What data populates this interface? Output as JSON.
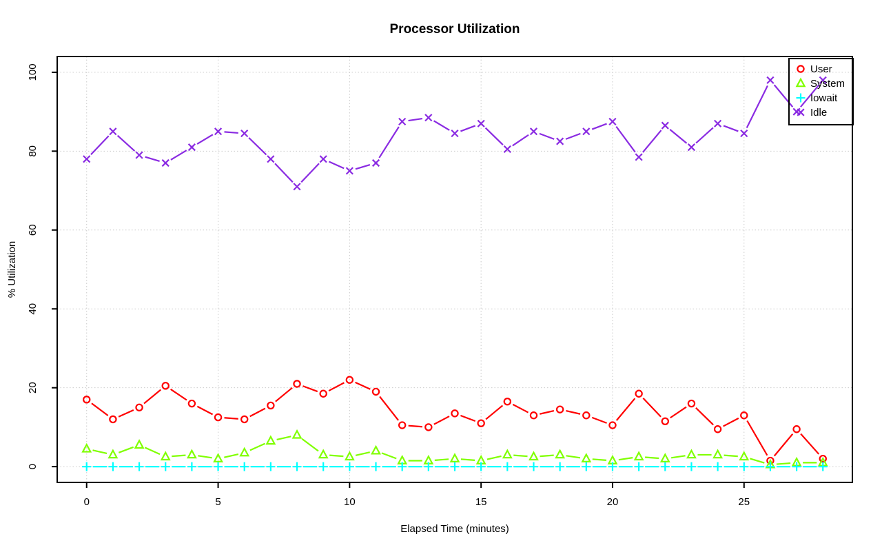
{
  "title": "Processor Utilization",
  "x_axis_label": "Elapsed Time (minutes)",
  "y_axis_label": "% Utilization",
  "legend": {
    "position": "top-right",
    "items": [
      {
        "label": "User",
        "symbol": "circle-icon",
        "color": "#FF0000"
      },
      {
        "label": "System",
        "symbol": "triangle-icon",
        "color": "#80FF00"
      },
      {
        "label": "Iowait",
        "symbol": "plus-icon",
        "color": "#00FFFF"
      },
      {
        "label": "Idle",
        "symbol": "x-icon",
        "color": "#8A2BE2"
      }
    ]
  },
  "chart_data": {
    "type": "line",
    "title": "Processor Utilization",
    "xlabel": "Elapsed Time (minutes)",
    "ylabel": "% Utilization",
    "x": [
      0,
      1,
      2,
      3,
      4,
      5,
      6,
      7,
      8,
      9,
      10,
      11,
      12,
      13,
      14,
      15,
      16,
      17,
      18,
      19,
      20,
      21,
      22,
      23,
      24,
      25,
      26,
      27,
      28
    ],
    "series": [
      {
        "name": "User",
        "color": "#FF0000",
        "symbol": "circle",
        "values": [
          17,
          12,
          15,
          20.5,
          16,
          12.5,
          12,
          15.5,
          21,
          18.5,
          22,
          19,
          10.5,
          10,
          13.5,
          11,
          16.5,
          13,
          14.5,
          13,
          10.5,
          18.5,
          11.5,
          16,
          9.5,
          13,
          1.5,
          9.5,
          2
        ]
      },
      {
        "name": "System",
        "color": "#80FF00",
        "symbol": "triangle",
        "values": [
          4.5,
          3,
          5.5,
          2.5,
          3,
          2,
          3.5,
          6.5,
          8,
          3,
          2.5,
          4,
          1.5,
          1.5,
          2,
          1.5,
          3,
          2.5,
          3,
          2,
          1.5,
          2.5,
          2,
          3,
          3,
          2.5,
          0.5,
          1,
          1
        ]
      },
      {
        "name": "Iowait",
        "color": "#00FFFF",
        "symbol": "plus",
        "values": [
          0,
          0,
          0,
          0,
          0,
          0,
          0,
          0,
          0,
          0,
          0,
          0,
          0,
          0,
          0,
          0,
          0,
          0,
          0,
          0,
          0,
          0,
          0,
          0,
          0,
          0,
          0,
          0,
          0
        ]
      },
      {
        "name": "Idle",
        "color": "#8A2BE2",
        "symbol": "x",
        "values": [
          78,
          85,
          79,
          77,
          81,
          85,
          84.5,
          78,
          71,
          78,
          75,
          77,
          87.5,
          88.5,
          84.5,
          87,
          80.5,
          85,
          82.5,
          85,
          87.5,
          78.5,
          86.5,
          81,
          87,
          84.5,
          98,
          90,
          98
        ]
      }
    ],
    "xticks": [
      0,
      5,
      10,
      15,
      20,
      25
    ],
    "yticks": [
      0,
      20,
      40,
      60,
      80,
      100
    ],
    "xlim": [
      -1.12,
      29.12
    ],
    "ylim": [
      -4,
      104
    ],
    "grid": "dotted",
    "legend_position": "top-right"
  }
}
